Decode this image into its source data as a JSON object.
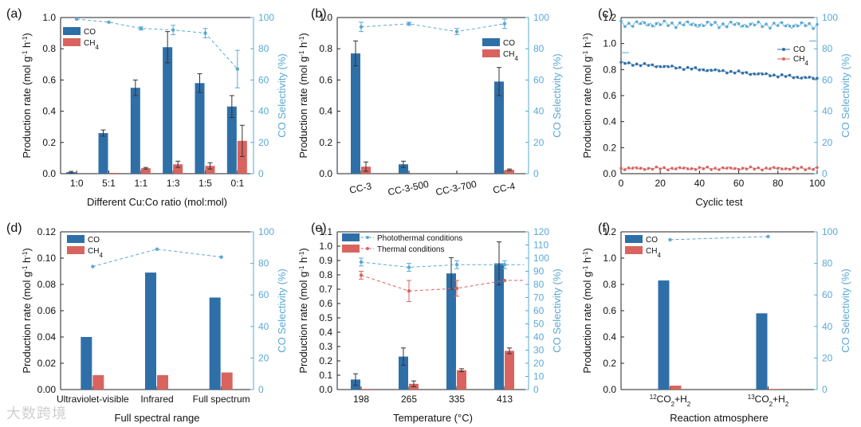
{
  "colors": {
    "co": "#2f6fa8",
    "ch4": "#d9645f",
    "selectivity": "#5aa9d6",
    "thermal": "#d9645f",
    "axis": "#222222"
  },
  "watermark": "大数跨境",
  "chart_data": [
    {
      "id": "a",
      "panel_label": "(a)",
      "type": "bar",
      "xlabel": "Different Cu:Co ratio (mol:mol)",
      "ylabel": "Production rate (mol g-1 h-1)",
      "y2label": "CO Selectivity (%)",
      "ylim": [
        0,
        1.0
      ],
      "yticks": [
        0.0,
        0.2,
        0.4,
        0.6,
        0.8,
        1.0
      ],
      "y2lim": [
        0,
        100
      ],
      "y2ticks": [
        0,
        20,
        40,
        60,
        80,
        100
      ],
      "categories": [
        "1:0",
        "5:1",
        "1:1",
        "1:3",
        "1:5",
        "0:1"
      ],
      "legend": [
        "CO",
        "CH4"
      ],
      "series": [
        {
          "name": "CO",
          "values": [
            0.01,
            0.26,
            0.55,
            0.81,
            0.58,
            0.43
          ],
          "errors": [
            0.005,
            0.02,
            0.05,
            0.1,
            0.06,
            0.07
          ]
        },
        {
          "name": "CH4",
          "values": [
            0.0,
            0.005,
            0.035,
            0.06,
            0.05,
            0.21
          ],
          "errors": [
            0,
            0,
            0.005,
            0.02,
            0.02,
            0.1
          ]
        }
      ],
      "selectivity": {
        "values": [
          99,
          97,
          93,
          92,
          90,
          67
        ],
        "errors": [
          0,
          0,
          1,
          3,
          3,
          12
        ]
      }
    },
    {
      "id": "b",
      "panel_label": "(b)",
      "type": "bar",
      "xlabel": "",
      "ylabel": "Production rate (mol g-1 h-1)",
      "y2label": "CO Selectivity (%)",
      "ylim": [
        0,
        1.0
      ],
      "yticks": [
        0.0,
        0.2,
        0.4,
        0.6,
        0.8,
        1.0
      ],
      "y2lim": [
        0,
        100
      ],
      "y2ticks": [
        0,
        20,
        40,
        60,
        80,
        100
      ],
      "categories": [
        "CC-3",
        "CC-3-500",
        "CC-3-700",
        "CC-4"
      ],
      "legend": [
        "CO",
        "CH4"
      ],
      "series": [
        {
          "name": "CO",
          "values": [
            0.77,
            0.06,
            0.0,
            0.59
          ],
          "errors": [
            0.08,
            0.02,
            0,
            0.09
          ]
        },
        {
          "name": "CH4",
          "values": [
            0.045,
            0.0,
            0.0,
            0.025
          ],
          "errors": [
            0.03,
            0,
            0,
            0.005
          ]
        }
      ],
      "selectivity": {
        "values": [
          94,
          96,
          91,
          96
        ],
        "errors": [
          3,
          1,
          2,
          3
        ]
      }
    },
    {
      "id": "c",
      "panel_label": "(c)",
      "type": "scatter",
      "xlabel": "Cyclic test",
      "ylabel": "Production rate (mol g-1 h-1)",
      "y2label": "CO Selectivity (%)",
      "xlim": [
        0,
        100
      ],
      "xticks": [
        0,
        20,
        40,
        60,
        80,
        100
      ],
      "ylim": [
        0,
        1.2
      ],
      "yticks": [
        0.0,
        0.2,
        0.4,
        0.6,
        0.8,
        1.0,
        1.2
      ],
      "y2lim": [
        0,
        100
      ],
      "y2ticks": [
        0,
        20,
        40,
        60,
        80,
        100
      ],
      "legend": [
        "CO",
        "CH4"
      ],
      "series": [
        {
          "name": "CO",
          "description": "roughly flat, declining slightly",
          "start": 0.85,
          "end": 0.73
        },
        {
          "name": "CH4",
          "description": "roughly flat",
          "start": 0.04,
          "end": 0.04
        },
        {
          "name": "CO Selectivity",
          "description": "noisy around 95%",
          "start": 96,
          "end": 95
        }
      ]
    },
    {
      "id": "d",
      "panel_label": "(d)",
      "type": "bar",
      "xlabel": "Full spectral range",
      "ylabel": "Production rate (mol g-1 h-1)",
      "y2label": "CO Selectivity (%)",
      "ylim": [
        0,
        0.12
      ],
      "yticks": [
        0.0,
        0.02,
        0.04,
        0.06,
        0.08,
        0.1,
        0.12
      ],
      "y2lim": [
        0,
        100
      ],
      "y2ticks": [
        0,
        20,
        40,
        60,
        80,
        100
      ],
      "categories": [
        "Ultraviolet-visible",
        "Infrared",
        "Full spectrum"
      ],
      "legend": [
        "CO",
        "CH4"
      ],
      "series": [
        {
          "name": "CO",
          "values": [
            0.04,
            0.089,
            0.07
          ]
        },
        {
          "name": "CH4",
          "values": [
            0.011,
            0.011,
            0.013
          ]
        }
      ],
      "selectivity": {
        "values": [
          78,
          89,
          84
        ]
      }
    },
    {
      "id": "e",
      "panel_label": "(e)",
      "type": "bar",
      "xlabel": "Temperature (°C)",
      "ylabel": "Production rate (mol g-1 h-1)",
      "y2label": "CO Selectivity (%)",
      "ylim": [
        0,
        1.1
      ],
      "yticks": [
        0.0,
        0.1,
        0.2,
        0.3,
        0.4,
        0.5,
        0.6,
        0.7,
        0.8,
        0.9,
        1.0,
        1.1
      ],
      "y2lim": [
        0,
        120
      ],
      "y2ticks": [
        0,
        10,
        20,
        30,
        40,
        50,
        60,
        70,
        80,
        90,
        100,
        110,
        120
      ],
      "categories": [
        "198",
        "265",
        "335",
        "413"
      ],
      "legend": [
        "Photothermal conditions",
        "Thermal conditions"
      ],
      "series": [
        {
          "name": "Photothermal conditions",
          "values": [
            0.07,
            0.23,
            0.81,
            0.88
          ],
          "errors": [
            0.04,
            0.06,
            0.11,
            0.15
          ]
        },
        {
          "name": "Thermal conditions",
          "values": [
            0.005,
            0.04,
            0.135,
            0.27
          ],
          "errors": [
            0,
            0.02,
            0.01,
            0.02
          ]
        }
      ],
      "selectivity_photothermal": {
        "values": [
          97,
          93,
          95,
          95
        ],
        "errors": [
          3,
          3,
          3,
          3
        ]
      },
      "selectivity_thermal": {
        "values": [
          87,
          75,
          77,
          83
        ],
        "errors": [
          3,
          8,
          6,
          0
        ]
      }
    },
    {
      "id": "f",
      "panel_label": "(f)",
      "type": "bar",
      "xlabel": "Reaction atmosphere",
      "ylabel": "Production rate (mol g-1 h-1)",
      "y2label": "CO Selectivity (%)",
      "ylim": [
        0,
        1.2
      ],
      "yticks": [
        0.0,
        0.2,
        0.4,
        0.6,
        0.8,
        1.0,
        1.2
      ],
      "y2lim": [
        0,
        100
      ],
      "y2ticks": [
        0,
        20,
        40,
        60,
        80,
        100
      ],
      "categories": [
        "12CO2+H2",
        "13CO2+H2"
      ],
      "legend": [
        "CO",
        "CH4"
      ],
      "series": [
        {
          "name": "CO",
          "values": [
            0.83,
            0.58
          ]
        },
        {
          "name": "CH4",
          "values": [
            0.03,
            0.005
          ]
        }
      ],
      "selectivity": {
        "values": [
          95,
          97
        ]
      }
    }
  ]
}
